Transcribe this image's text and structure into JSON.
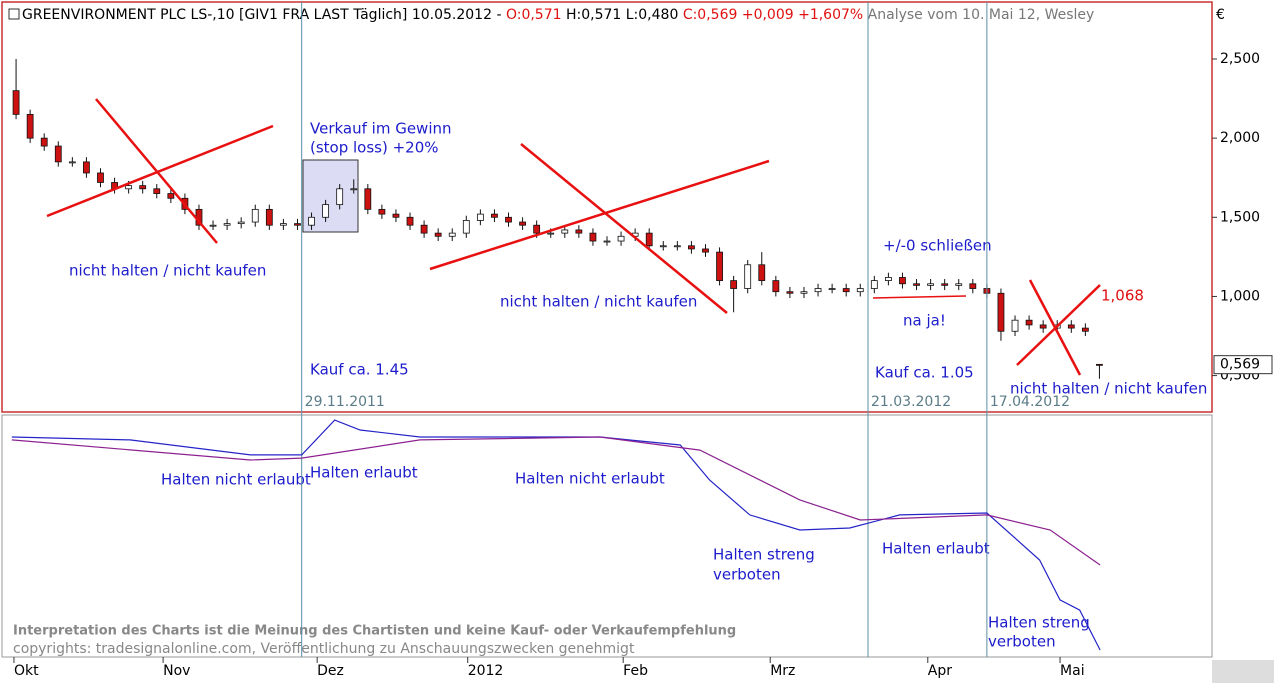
{
  "header": {
    "title": "GREENVIRONMENT PLC LS-,10 [GIV1 FRA LAST Täglich] 10.05.2012 -",
    "open_text": "O:0,571",
    "hl_text": "H:0,571 L:0,480",
    "close_text": "C:0,569 +0,009 +1,607%",
    "analysis": "Analyse vom 10. Mai 12, Wesley",
    "currency": "€"
  },
  "footer": [
    "Interpretation des Charts ist die Meinung des Chartisten und keine Kauf- oder Verkaufempfehlung",
    "copyrights: tradesignalonline.com, Veröffentlichung zu Anschauungszwecken genehmigt"
  ],
  "chart_data": [
    {
      "type": "candlestick",
      "up_color": "#ffffff",
      "down_color": "#cc1111",
      "xlim": [
        0,
        172
      ],
      "ylim": [
        0.27,
        2.86
      ],
      "yticks": [
        {
          "value": 0.5,
          "label": "0,500"
        },
        {
          "value": 1,
          "label": "1,000"
        },
        {
          "value": 1.5,
          "label": "1,500"
        },
        {
          "value": 2,
          "label": "2,000"
        },
        {
          "value": 2.5,
          "label": "2,500"
        }
      ],
      "last_price": {
        "value": 0.569,
        "label": "0,569"
      },
      "markers": [
        {
          "value": 42.6,
          "label": "29.11.2011"
        },
        {
          "value": 123.1,
          "label": "21.03.2012"
        },
        {
          "value": 140.0,
          "label": "17.04.2012"
        }
      ],
      "x": [
        2,
        4,
        6,
        8,
        10,
        12,
        14,
        16,
        18,
        20,
        22,
        24,
        26,
        28,
        30,
        32,
        34,
        36,
        38,
        40,
        42,
        44,
        46,
        48,
        50,
        52,
        54,
        56,
        58,
        60,
        62,
        64,
        66,
        68,
        70,
        72,
        74,
        76,
        78,
        80,
        82,
        84,
        86,
        88,
        90,
        92,
        94,
        96,
        98,
        100,
        102,
        104,
        106,
        108,
        110,
        112,
        114,
        116,
        118,
        120,
        122,
        124,
        126,
        128,
        130,
        132,
        134,
        136,
        138,
        140,
        142,
        144,
        146,
        148,
        150,
        152,
        154,
        156
      ],
      "open": [
        2.3,
        2.15,
        2.0,
        1.95,
        1.85,
        1.85,
        1.78,
        1.72,
        1.68,
        1.7,
        1.68,
        1.65,
        1.62,
        1.55,
        1.45,
        1.45,
        1.46,
        1.47,
        1.55,
        1.45,
        1.46,
        1.45,
        1.5,
        1.58,
        1.68,
        1.68,
        1.55,
        1.52,
        1.5,
        1.45,
        1.4,
        1.38,
        1.4,
        1.48,
        1.52,
        1.5,
        1.47,
        1.45,
        1.4,
        1.4,
        1.42,
        1.4,
        1.35,
        1.35,
        1.38,
        1.4,
        1.32,
        1.32,
        1.32,
        1.3,
        1.28,
        1.1,
        1.05,
        1.2,
        1.1,
        1.03,
        1.02,
        1.03,
        1.05,
        1.05,
        1.03,
        1.05,
        1.1,
        1.12,
        1.08,
        1.07,
        1.08,
        1.07,
        1.08,
        1.05,
        1.02,
        0.78,
        0.85,
        0.82,
        0.8,
        0.82,
        0.8,
        0.571
      ],
      "high": [
        2.5,
        2.18,
        2.03,
        1.98,
        1.88,
        1.88,
        1.81,
        1.75,
        1.73,
        1.73,
        1.71,
        1.68,
        1.65,
        1.58,
        1.48,
        1.49,
        1.5,
        1.58,
        1.58,
        1.49,
        1.49,
        1.53,
        1.61,
        1.71,
        1.74,
        1.71,
        1.58,
        1.55,
        1.53,
        1.48,
        1.43,
        1.43,
        1.51,
        1.55,
        1.55,
        1.53,
        1.5,
        1.48,
        1.43,
        1.45,
        1.45,
        1.43,
        1.38,
        1.41,
        1.43,
        1.43,
        1.35,
        1.35,
        1.35,
        1.33,
        1.31,
        1.13,
        1.23,
        1.28,
        1.13,
        1.06,
        1.06,
        1.08,
        1.08,
        1.08,
        1.08,
        1.13,
        1.15,
        1.15,
        1.11,
        1.11,
        1.11,
        1.11,
        1.11,
        1.08,
        1.05,
        0.88,
        0.88,
        0.85,
        0.85,
        0.85,
        0.83,
        0.571
      ],
      "low": [
        2.12,
        1.97,
        1.92,
        1.82,
        1.82,
        1.75,
        1.69,
        1.65,
        1.65,
        1.65,
        1.62,
        1.59,
        1.52,
        1.42,
        1.42,
        1.42,
        1.43,
        1.44,
        1.42,
        1.42,
        1.42,
        1.42,
        1.47,
        1.55,
        1.65,
        1.52,
        1.49,
        1.47,
        1.42,
        1.37,
        1.35,
        1.35,
        1.37,
        1.45,
        1.47,
        1.44,
        1.42,
        1.37,
        1.37,
        1.37,
        1.37,
        1.32,
        1.32,
        1.32,
        1.35,
        1.29,
        1.29,
        1.29,
        1.27,
        1.25,
        1.07,
        0.9,
        1.02,
        1.07,
        1.0,
        0.99,
        0.99,
        1.0,
        1.02,
        1.0,
        1.0,
        1.02,
        1.07,
        1.05,
        1.04,
        1.04,
        1.04,
        1.04,
        1.02,
        0.99,
        0.72,
        0.75,
        0.79,
        0.77,
        0.77,
        0.77,
        0.75,
        0.48
      ],
      "close": [
        2.15,
        2.0,
        1.95,
        1.85,
        1.85,
        1.78,
        1.72,
        1.68,
        1.7,
        1.68,
        1.65,
        1.62,
        1.55,
        1.45,
        1.45,
        1.46,
        1.47,
        1.55,
        1.45,
        1.46,
        1.45,
        1.5,
        1.58,
        1.68,
        1.68,
        1.55,
        1.52,
        1.5,
        1.45,
        1.4,
        1.38,
        1.4,
        1.48,
        1.52,
        1.5,
        1.47,
        1.45,
        1.4,
        1.4,
        1.42,
        1.4,
        1.35,
        1.35,
        1.38,
        1.4,
        1.32,
        1.32,
        1.32,
        1.3,
        1.28,
        1.1,
        1.05,
        1.2,
        1.1,
        1.03,
        1.02,
        1.03,
        1.05,
        1.05,
        1.03,
        1.05,
        1.1,
        1.12,
        1.08,
        1.07,
        1.08,
        1.07,
        1.08,
        1.05,
        1.02,
        0.78,
        0.85,
        0.82,
        0.8,
        0.82,
        0.8,
        0.78,
        0.569
      ],
      "annotations": [
        "Verkauf im Gewinn",
        "(stop loss) +20%",
        "nicht halten / nicht kaufen",
        "Kauf ca. 1.45",
        "nicht halten / nicht kaufen",
        "+/-0 schließen",
        "na ja!",
        "Kauf ca. 1.05",
        "1,068",
        "nicht halten / nicht kaufen"
      ]
    },
    {
      "type": "line",
      "xlim": [
        0,
        172
      ],
      "ylim": [
        0,
        100
      ],
      "xticks": [
        {
          "value": 1.7,
          "label": "Okt"
        },
        {
          "value": 22.9,
          "label": "Nov"
        },
        {
          "value": 44.8,
          "label": "Dez"
        },
        {
          "value": 66.2,
          "label": "2012"
        },
        {
          "value": 88.3,
          "label": "Feb"
        },
        {
          "value": 109.2,
          "label": "Mrz"
        },
        {
          "value": 131.6,
          "label": "Apr"
        },
        {
          "value": 150.4,
          "label": "Mai"
        }
      ],
      "series": [
        {
          "color": "#2424c8",
          "x": [
            1.4,
            18.2,
            35.3,
            42.6,
            47.3,
            50.9,
            59.4,
            85.0,
            96.4,
            100.6,
            106.3,
            113.4,
            120.5,
            127.6,
            140.0,
            147.5,
            150.4,
            153.2,
            156.1
          ],
          "values": [
            90.9,
            89.7,
            83.5,
            83.5,
            97.9,
            93.8,
            90.9,
            90.9,
            87.6,
            73.1,
            58.7,
            52.5,
            53.3,
            58.7,
            59.5,
            40.1,
            23.6,
            19.4,
            2.9
          ]
        },
        {
          "color": "#8c2090",
          "x": [
            1.4,
            35.3,
            42.6,
            59.4,
            85.0,
            99.2,
            113.4,
            122.0,
            140.0,
            149.0,
            156.1
          ],
          "values": [
            89.7,
            81.4,
            82.2,
            89.7,
            90.9,
            85.5,
            64.9,
            56.6,
            58.7,
            52.5,
            38.0
          ]
        }
      ],
      "annotations": [
        "Halten nicht erlaubt",
        "Halten erlaubt",
        "Halten nicht erlaubt",
        "Halten streng",
        "verboten",
        "Halten erlaubt",
        "Halten streng",
        "verboten"
      ]
    }
  ]
}
